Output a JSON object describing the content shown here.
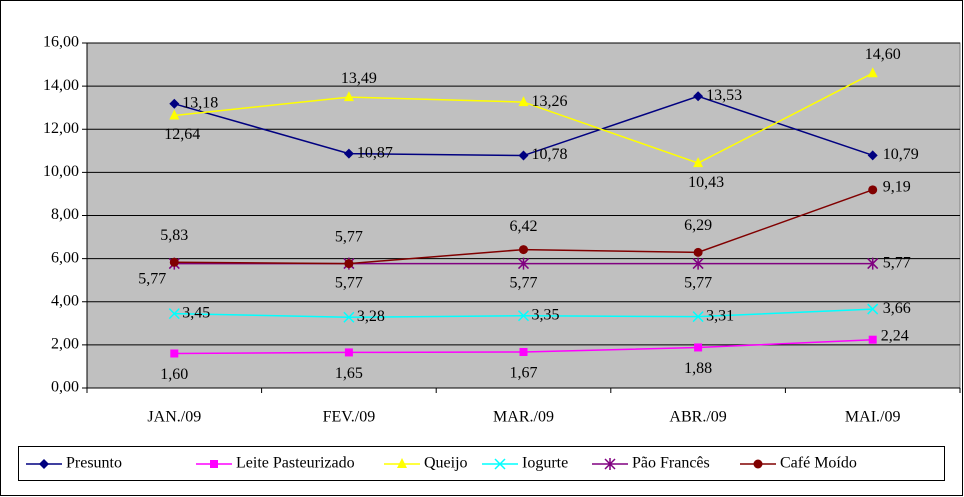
{
  "chart_data": {
    "type": "line",
    "categories": [
      "JAN./09",
      "FEV./09",
      "MAR./09",
      "ABR./09",
      "MAI./09"
    ],
    "series": [
      {
        "name": "Presunto",
        "color": "#000080",
        "marker": "diamond",
        "values": [
          13.18,
          10.87,
          10.78,
          13.53,
          10.79
        ],
        "value_labels": [
          "13,18",
          "10,87",
          "10,78",
          "13,53",
          "10,79"
        ]
      },
      {
        "name": "Leite Pasteurizado",
        "color": "#FF00FF",
        "marker": "square",
        "values": [
          1.6,
          1.65,
          1.67,
          1.88,
          2.24
        ],
        "value_labels": [
          "1,60",
          "1,65",
          "1,67",
          "1,88",
          "2,24"
        ]
      },
      {
        "name": "Queijo",
        "color": "#FFFF00",
        "marker": "triangle",
        "values": [
          12.64,
          13.49,
          13.26,
          10.43,
          14.6
        ],
        "value_labels": [
          "12,64",
          "13,49",
          "13,26",
          "10,43",
          "14,60"
        ]
      },
      {
        "name": "Iogurte",
        "color": "#00FFFF",
        "marker": "x",
        "values": [
          3.45,
          3.28,
          3.35,
          3.31,
          3.66
        ],
        "value_labels": [
          "3,45",
          "3,28",
          "3,35",
          "3,31",
          "3,66"
        ]
      },
      {
        "name": "Pão Francês",
        "color": "#800080",
        "marker": "star",
        "values": [
          5.77,
          5.77,
          5.77,
          5.77,
          5.77
        ],
        "value_labels": [
          "5,77",
          "5,77",
          "5,77",
          "5,77",
          "5,77"
        ]
      },
      {
        "name": "Café Moído",
        "color": "#800000",
        "marker": "circle",
        "values": [
          5.83,
          5.77,
          6.42,
          6.29,
          9.19
        ],
        "value_labels": [
          "5,83",
          "5,77",
          "6,42",
          "6,29",
          "9,19"
        ]
      }
    ],
    "ylim": [
      0,
      16
    ],
    "yticks": [
      {
        "value": 0,
        "label": "0,00"
      },
      {
        "value": 2,
        "label": "2,00"
      },
      {
        "value": 4,
        "label": "4,00"
      },
      {
        "value": 6,
        "label": "6,00"
      },
      {
        "value": 8,
        "label": "8,00"
      },
      {
        "value": 10,
        "label": "10,00"
      },
      {
        "value": 12,
        "label": "12,00"
      },
      {
        "value": 14,
        "label": "14,00"
      },
      {
        "value": 16,
        "label": "16,00"
      }
    ],
    "grid": true,
    "plot_background": "#C0C0C0",
    "legend": "bottom"
  }
}
